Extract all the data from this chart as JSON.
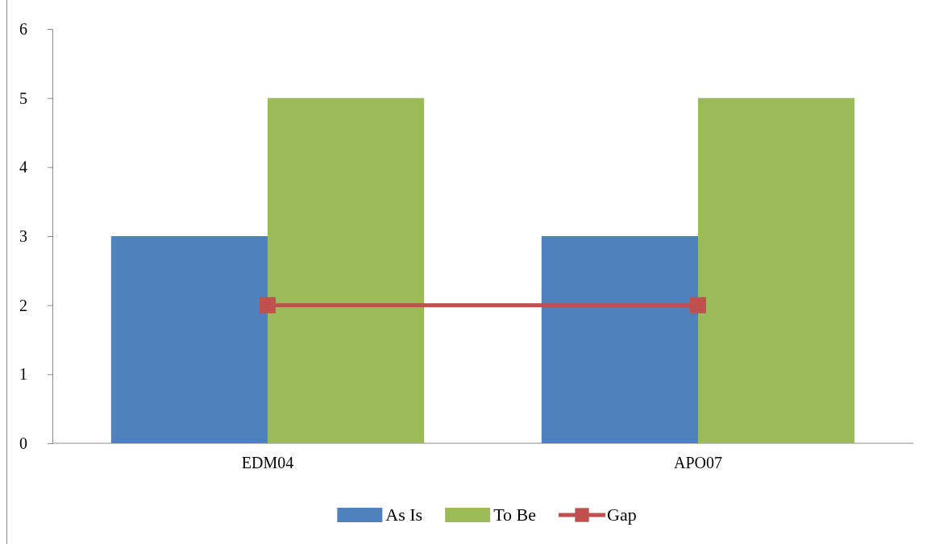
{
  "chart_data": {
    "type": "bar",
    "categories": [
      "EDM04",
      "APO07"
    ],
    "series": [
      {
        "name": "As Is",
        "color": "#4f81bd",
        "values": [
          3,
          3
        ]
      },
      {
        "name": "To Be",
        "color": "#9bbb59",
        "values": [
          5,
          5
        ]
      },
      {
        "name": "Gap",
        "color": "#c0504d",
        "values": [
          2,
          2
        ],
        "type": "line",
        "marker": "square",
        "line_style": "solid"
      }
    ],
    "ylim": [
      0,
      6
    ],
    "yticks": [
      0,
      1,
      2,
      3,
      4,
      5,
      6
    ],
    "grid": false,
    "legend": "bottom"
  }
}
